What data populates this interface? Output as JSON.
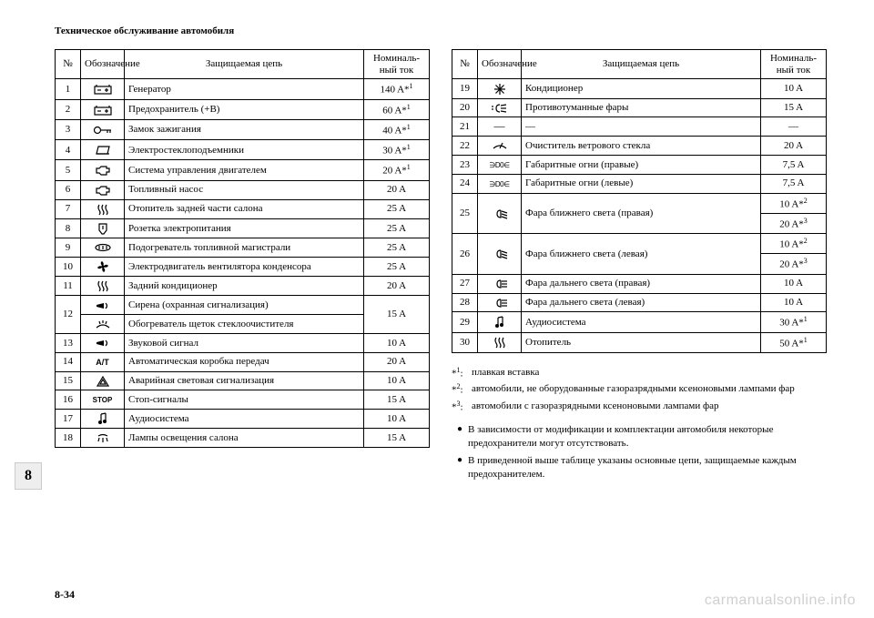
{
  "header_title": "Техническое обслуживание автомобиля",
  "section_tab": "8",
  "page_number": "8-34",
  "watermark": "carmanualsonline.info",
  "table_headers": {
    "num": "№",
    "symbol": "Обозначение",
    "circuit": "Защищаемая цепь",
    "rating": "Номиналь-\nный ток"
  },
  "left_rows": [
    {
      "n": "1",
      "icon": "battery",
      "circuit": "Генератор",
      "rating": "140 A*",
      "sup": "1"
    },
    {
      "n": "2",
      "icon": "battery",
      "circuit": "Предохранитель (+В)",
      "rating": "60 A*",
      "sup": "1"
    },
    {
      "n": "3",
      "icon": "key",
      "circuit": "Замок зажигания",
      "rating": "40 A*",
      "sup": "1"
    },
    {
      "n": "4",
      "icon": "window",
      "circuit": "Электростеклоподъемники",
      "rating": "30 A*",
      "sup": "1"
    },
    {
      "n": "5",
      "icon": "engine",
      "circuit": "Система управления двигателем",
      "rating": "20 A*",
      "sup": "1"
    },
    {
      "n": "6",
      "icon": "engine",
      "circuit": "Топливный насос",
      "rating": "20 A"
    },
    {
      "n": "7",
      "icon": "heat",
      "circuit": "Отопитель задней части салона",
      "rating": "25 A"
    },
    {
      "n": "8",
      "icon": "socket",
      "circuit": "Розетка электропитания",
      "rating": "25 A"
    },
    {
      "n": "9",
      "icon": "fuelheat",
      "circuit": "Подогреватель топливной магистрали",
      "rating": "25 A"
    },
    {
      "n": "10",
      "icon": "fan",
      "circuit": "Электродвигатель вентилятора конденсора",
      "rating": "25 A"
    },
    {
      "n": "11",
      "icon": "heat",
      "circuit": "Задний кондиционер",
      "rating": "20 A"
    },
    {
      "n": "12",
      "group": [
        {
          "icon": "horn",
          "circuit": "Сирена (охранная сигнализация)"
        },
        {
          "icon": "washer",
          "circuit": "Обогреватель щеток стеклоочистителя"
        }
      ],
      "rating": "15 A"
    },
    {
      "n": "13",
      "icon": "horn",
      "circuit": "Звуковой сигнал",
      "rating": "10 A"
    },
    {
      "n": "14",
      "icon": "at",
      "circuit": "Автоматическая коробка передач",
      "rating": "20 A"
    },
    {
      "n": "15",
      "icon": "hazard",
      "circuit": "Аварийная световая сигнализация",
      "rating": "10 A"
    },
    {
      "n": "16",
      "icon": "stop",
      "circuit": "Стоп-сигналы",
      "rating": "15 A"
    },
    {
      "n": "17",
      "icon": "audio",
      "circuit": "Аудиосистема",
      "rating": "10 A"
    },
    {
      "n": "18",
      "icon": "dome",
      "circuit": "Лампы освещения салона",
      "rating": "15 A"
    }
  ],
  "right_rows": [
    {
      "n": "19",
      "icon": "ac",
      "circuit": "Кондиционер",
      "rating": "10 A"
    },
    {
      "n": "20",
      "icon": "fog",
      "circuit": "Противотуманные фары",
      "rating": "15 A"
    },
    {
      "n": "21",
      "icon": "dash",
      "circuit": "—",
      "rating": "—"
    },
    {
      "n": "22",
      "icon": "wiper",
      "circuit": "Очиститель ветрового стекла",
      "rating": "20 A"
    },
    {
      "n": "23",
      "icon": "tail",
      "circuit": "Габаритные огни (правые)",
      "rating": "7,5 A"
    },
    {
      "n": "24",
      "icon": "tail",
      "circuit": "Габаритные огни (левые)",
      "rating": "7,5 A"
    },
    {
      "n": "25",
      "icon": "lowbeam",
      "circuit": "Фара ближнего света (правая)",
      "ratings": [
        {
          "v": "10 A*",
          "sup": "2"
        },
        {
          "v": "20 A*",
          "sup": "3"
        }
      ]
    },
    {
      "n": "26",
      "icon": "lowbeam",
      "circuit": "Фара ближнего света (левая)",
      "ratings": [
        {
          "v": "10 A*",
          "sup": "2"
        },
        {
          "v": "20 A*",
          "sup": "3"
        }
      ]
    },
    {
      "n": "27",
      "icon": "highbeam",
      "circuit": "Фара дальнего света (правая)",
      "rating": "10 A"
    },
    {
      "n": "28",
      "icon": "highbeam",
      "circuit": "Фара дальнего света (левая)",
      "rating": "10 A"
    },
    {
      "n": "29",
      "icon": "audio",
      "circuit": "Аудиосистема",
      "rating": "30 A*",
      "sup": "1"
    },
    {
      "n": "30",
      "icon": "heat",
      "circuit": "Отопитель",
      "rating": "50 A*",
      "sup": "1"
    }
  ],
  "footnotes": [
    {
      "mark": "*1",
      "text": "плавкая вставка"
    },
    {
      "mark": "*2",
      "text": "автомобили, не оборудованные газоразрядными ксеноновыми лампами фар"
    },
    {
      "mark": "*3",
      "text": "автомобили с газоразрядными ксеноновыми лампами фар"
    }
  ],
  "bullets": [
    "В зависимости от модификации и комплектации автомобиля некоторые предохранители могут отсутствовать.",
    "В приведенной выше таблице указаны основные цепи, защищаемые каждым предохранителем."
  ],
  "colors": {
    "text": "#000000",
    "border": "#000000",
    "tab_bg": "#eeeeee",
    "watermark": "#d0d0d0"
  }
}
